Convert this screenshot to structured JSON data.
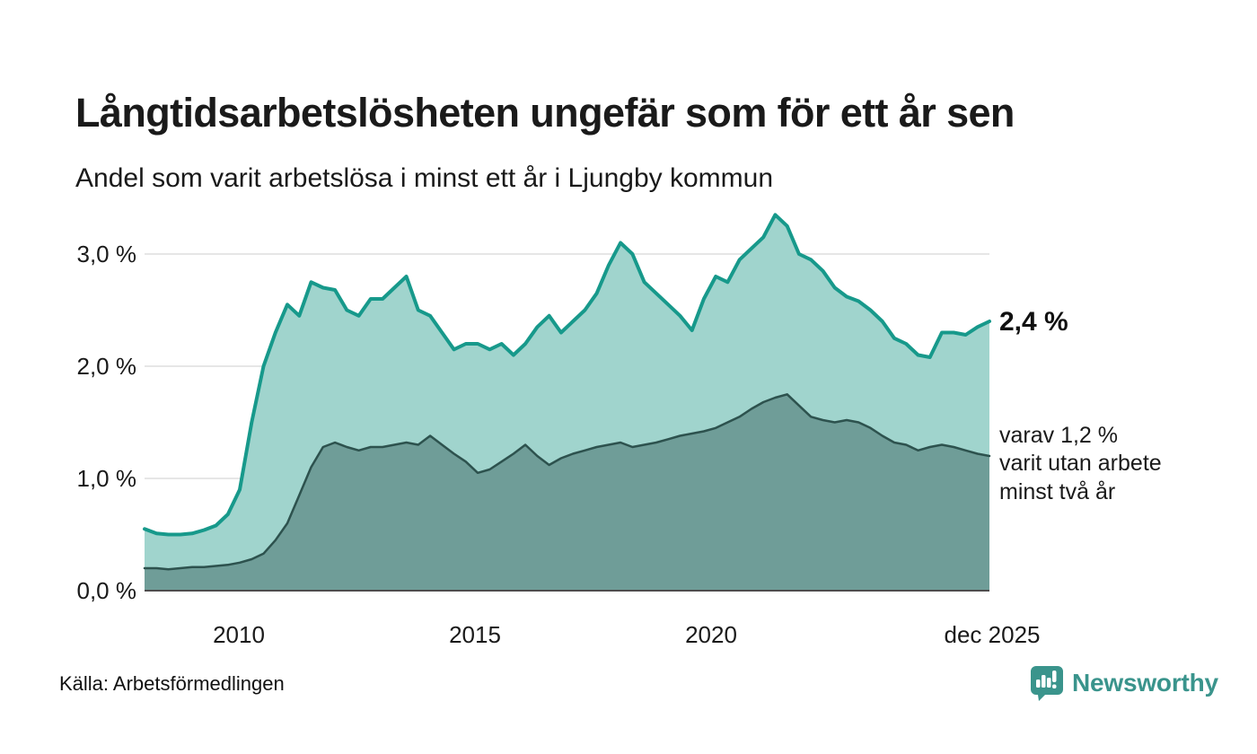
{
  "header": {
    "title": "Långtidsarbetslösheten ungefär som för ett år sen",
    "subtitle": "Andel som varit arbetslösa i minst ett år i Ljungby kommun"
  },
  "chart_data": {
    "type": "area",
    "title": "Långtidsarbetslösheten ungefär som för ett år sen",
    "subtitle": "Andel som varit arbetslösa i minst ett år i Ljungby kommun",
    "unit": "%",
    "x_years": {
      "start": 2008.0,
      "step_years": 0.25,
      "end": 2025.92
    },
    "ylim": [
      0,
      3.5
    ],
    "grid": "horizontal",
    "grid_values": [
      3.0,
      2.0,
      1.0
    ],
    "yticks": [
      "3,0 %",
      "2,0 %",
      "1,0 %",
      "0,0 %"
    ],
    "ytick_values": [
      3.0,
      2.0,
      1.0,
      0.0
    ],
    "xticks": [
      "2010",
      "2015",
      "2020",
      "dec 2025"
    ],
    "xtick_values": [
      2010,
      2015,
      2020,
      2025.92
    ],
    "series": [
      {
        "name": "Andel arbetslösa minst ett år",
        "line_color": "#17998b",
        "fill_color": "#a0d4cd",
        "latest_value": 2.4,
        "values": [
          0.55,
          0.51,
          0.5,
          0.5,
          0.51,
          0.54,
          0.58,
          0.68,
          0.9,
          1.5,
          2.0,
          2.3,
          2.55,
          2.45,
          2.75,
          2.7,
          2.68,
          2.5,
          2.45,
          2.6,
          2.6,
          2.7,
          2.8,
          2.5,
          2.45,
          2.3,
          2.15,
          2.2,
          2.2,
          2.15,
          2.2,
          2.1,
          2.2,
          2.35,
          2.45,
          2.3,
          2.4,
          2.5,
          2.65,
          2.9,
          3.1,
          3.0,
          2.75,
          2.65,
          2.55,
          2.45,
          2.32,
          2.6,
          2.8,
          2.75,
          2.95,
          3.05,
          3.15,
          3.35,
          3.25,
          3.0,
          2.95,
          2.85,
          2.7,
          2.62,
          2.58,
          2.5,
          2.4,
          2.25,
          2.2,
          2.1,
          2.08,
          2.3,
          2.3,
          2.28,
          2.35,
          2.4
        ]
      },
      {
        "name": "varav utan arbete minst två år",
        "line_color": "#2d524e",
        "fill_color": "#6f9d98",
        "latest_value": 1.2,
        "values": [
          0.2,
          0.2,
          0.19,
          0.2,
          0.21,
          0.21,
          0.22,
          0.23,
          0.25,
          0.28,
          0.33,
          0.45,
          0.6,
          0.85,
          1.1,
          1.28,
          1.32,
          1.28,
          1.25,
          1.28,
          1.28,
          1.3,
          1.32,
          1.3,
          1.38,
          1.3,
          1.22,
          1.15,
          1.05,
          1.08,
          1.15,
          1.22,
          1.3,
          1.2,
          1.12,
          1.18,
          1.22,
          1.25,
          1.28,
          1.3,
          1.32,
          1.28,
          1.3,
          1.32,
          1.35,
          1.38,
          1.4,
          1.42,
          1.45,
          1.5,
          1.55,
          1.62,
          1.68,
          1.72,
          1.75,
          1.65,
          1.55,
          1.52,
          1.5,
          1.52,
          1.5,
          1.45,
          1.38,
          1.32,
          1.3,
          1.25,
          1.28,
          1.3,
          1.28,
          1.25,
          1.22,
          1.2
        ]
      }
    ]
  },
  "annotations": {
    "latest_total": "2,4 %",
    "secondary_lines": [
      "varav 1,2 %",
      "varit utan arbete",
      "minst två år"
    ]
  },
  "footer": {
    "source": "Källa: Arbetsförmedlingen",
    "brand": "Newsworthy"
  },
  "colors": {
    "accent_teal": "#17998b",
    "light_fill": "#a0d4cd",
    "dark_fill": "#6f9d98",
    "dark_line": "#2d524e",
    "gridline": "#dedede",
    "baseline": "#4d4d4d",
    "brand_teal": "#3a948c"
  }
}
